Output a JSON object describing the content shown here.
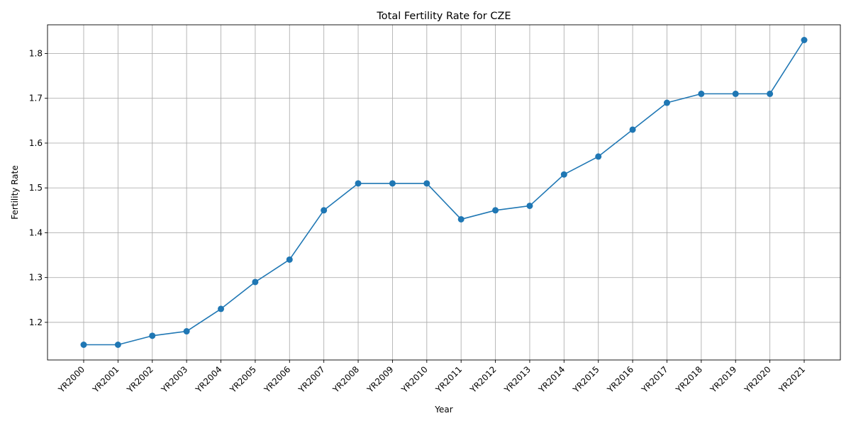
{
  "chart_data": {
    "type": "line",
    "title": "Total Fertility Rate for CZE",
    "xlabel": "Year",
    "ylabel": "Fertility Rate",
    "categories": [
      "YR2000",
      "YR2001",
      "YR2002",
      "YR2003",
      "YR2004",
      "YR2005",
      "YR2006",
      "YR2007",
      "YR2008",
      "YR2009",
      "YR2010",
      "YR2011",
      "YR2012",
      "YR2013",
      "YR2014",
      "YR2015",
      "YR2016",
      "YR2017",
      "YR2018",
      "YR2019",
      "YR2020",
      "YR2021"
    ],
    "series": [
      {
        "values": [
          1.15,
          1.15,
          1.17,
          1.18,
          1.23,
          1.29,
          1.34,
          1.45,
          1.51,
          1.51,
          1.51,
          1.43,
          1.45,
          1.46,
          1.53,
          1.57,
          1.63,
          1.69,
          1.71,
          1.71,
          1.71,
          1.83
        ],
        "color": "#1f77b4",
        "marker": "circle"
      }
    ],
    "ylim": [
      1.116,
      1.864
    ],
    "yticks": [
      "1.2",
      "1.3",
      "1.4",
      "1.5",
      "1.6",
      "1.7",
      "1.8"
    ],
    "grid": true,
    "legend": "none",
    "xtick_rotation": "45°"
  }
}
